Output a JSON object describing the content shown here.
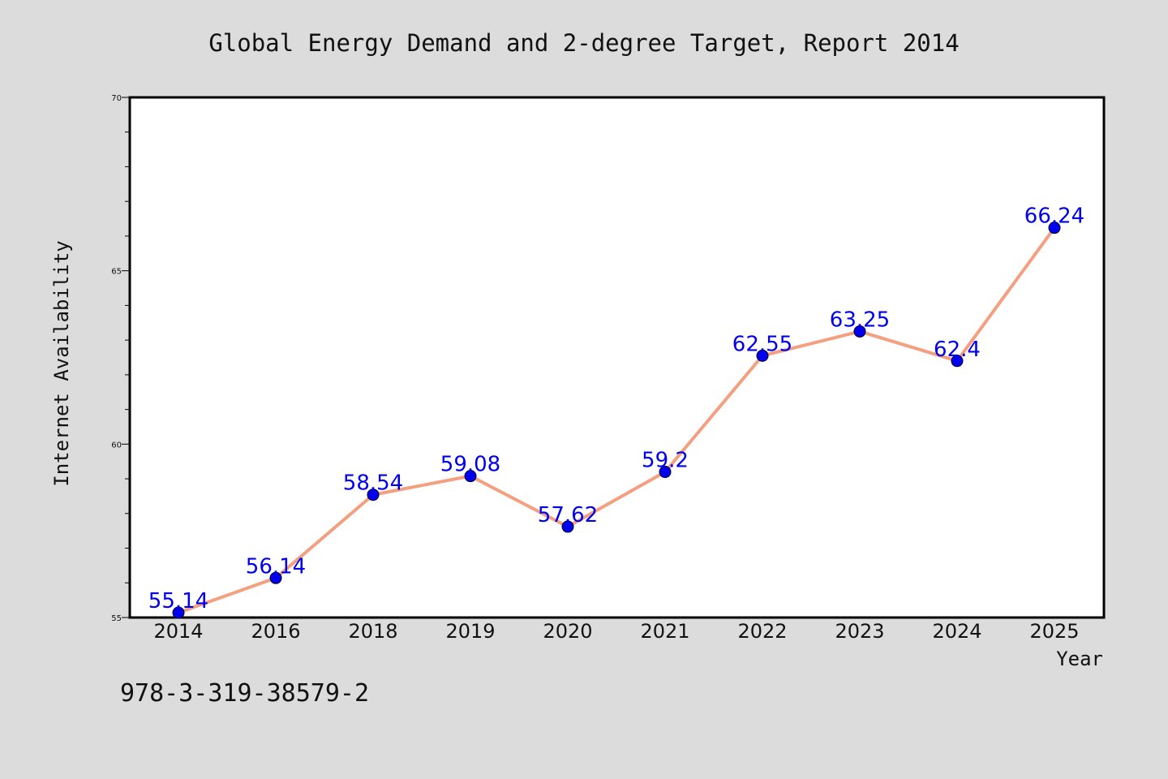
{
  "chart_data": {
    "type": "line",
    "title": "Global Energy Demand and 2-degree Target, Report 2014",
    "xlabel": "Year",
    "ylabel": "Internet Availability",
    "categories": [
      "2014",
      "2016",
      "2018",
      "2019",
      "2020",
      "2021",
      "2022",
      "2023",
      "2024",
      "2025"
    ],
    "series": [
      {
        "values": [
          55.14,
          56.14,
          58.54,
          59.08,
          57.62,
          59.2,
          62.55,
          63.25,
          62.4,
          66.24
        ],
        "labels": [
          "55.14",
          "56.14",
          "58.54",
          "59.08",
          "57.62",
          "59.2",
          "62.55",
          "63.25",
          "62.4",
          "66.24"
        ],
        "line_color": "#f4a080",
        "marker_color": "#0000ee"
      }
    ],
    "ylim": [
      55,
      70
    ],
    "yticks": [
      "55",
      "60",
      "65",
      "70"
    ],
    "grid": false,
    "legend": "none"
  },
  "footer_text": "978-3-319-38579-2",
  "colors": {
    "background": "#dcdcdc",
    "plot_background": "#ffffff",
    "label_color": "#0000ee"
  }
}
